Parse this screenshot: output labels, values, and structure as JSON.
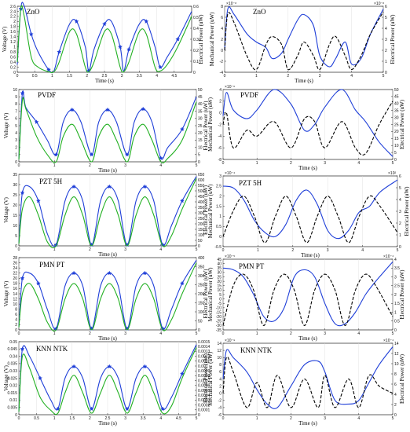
{
  "colors": {
    "blue": "#1f3fd8",
    "green": "#22b022",
    "black": "#000000"
  },
  "chart_data": [
    {
      "id": "zno_v",
      "type": "line",
      "title": "ZnO",
      "xlabel": "Time (s)",
      "ylabel": "Voltage (V)",
      "y2label": "Electrical Power (uW)",
      "xlim": [
        0,
        5
      ],
      "ylim": [
        0,
        2.6
      ],
      "y2lim": [
        0,
        0.6
      ],
      "xticks": [
        "0",
        "0.5",
        "1",
        "1.5",
        "2",
        "2.5",
        "3",
        "3.5",
        "4",
        "4.5"
      ],
      "yticks": [
        "0",
        "0.2",
        "0.4",
        "0.6",
        "0.8",
        "1",
        "1.2",
        "1.4",
        "1.6",
        "1.8",
        "2",
        "2.2",
        "2.4",
        "2.6"
      ],
      "y2ticks": [
        "0",
        "0.1",
        "0.2",
        "0.3",
        "0.4",
        "0.5",
        "0.6"
      ],
      "x": [
        0,
        0.1,
        0.2,
        0.4,
        0.6,
        0.9,
        1.05,
        1.2,
        1.5,
        1.7,
        1.95,
        2.05,
        2.2,
        2.5,
        2.7,
        2.95,
        3.05,
        3.2,
        3.5,
        3.7,
        3.95,
        4.1,
        4.3,
        4.6,
        5.0
      ],
      "series": [
        {
          "style": "blue-marker",
          "values": [
            0.3,
            2.5,
            2.6,
            1.5,
            0.8,
            0.1,
            0.05,
            0.8,
            1.9,
            2.0,
            1.0,
            0.05,
            0.9,
            1.9,
            2.0,
            1.0,
            0.05,
            0.9,
            1.9,
            2.0,
            1.0,
            0.2,
            0.6,
            1.3,
            2.4
          ]
        },
        {
          "style": "green",
          "values": [
            0.4,
            2.5,
            2.2,
            0.6,
            0.2,
            0.02,
            0.02,
            0.4,
            1.6,
            1.5,
            0.2,
            0.02,
            0.4,
            1.6,
            1.5,
            0.2,
            0.02,
            0.4,
            1.6,
            1.5,
            0.2,
            0.05,
            0.3,
            1.0,
            2.2
          ]
        }
      ]
    },
    {
      "id": "zno_m",
      "type": "line",
      "title": "ZnO",
      "xlabel": "Time (s)",
      "ylabel": "Mechanical Power (uW)",
      "y2label": "Electrical Power (uW)",
      "xlim": [
        0,
        5
      ],
      "ylim": [
        -4,
        8
      ],
      "y2lim": [
        0,
        6
      ],
      "yexp": "×10⁻⁸",
      "y2exp": "×10⁻⁸",
      "xticks": [
        "0",
        "1",
        "2",
        "3",
        "4",
        "5"
      ],
      "yticks": [
        "-4",
        "-2",
        "0",
        "2",
        "4",
        "6",
        "8"
      ],
      "y2ticks": [
        "0",
        "1",
        "2",
        "3",
        "4",
        "5",
        "6"
      ],
      "x": [
        0,
        0.1,
        0.3,
        0.7,
        1.0,
        1.3,
        1.5,
        1.8,
        2.0,
        2.3,
        2.5,
        2.8,
        3.0,
        3.3,
        3.5,
        3.8,
        4.0,
        4.3,
        4.6,
        5.0
      ],
      "series": [
        {
          "style": "blue",
          "values": [
            0,
            7.5,
            6.5,
            3,
            1.5,
            0.5,
            -1.5,
            -0.5,
            2,
            5.5,
            6.5,
            4.5,
            -1,
            -3,
            -1.5,
            1.5,
            -2.5,
            -1.5,
            3,
            7.5
          ]
        },
        {
          "style": "black-dash",
          "values": [
            0,
            6.6,
            5,
            -1,
            -3.5,
            1,
            2.5,
            1,
            -3.5,
            -1,
            1.5,
            -1,
            -3.5,
            1,
            2.5,
            -1,
            -3.5,
            -1,
            3,
            7
          ]
        }
      ]
    },
    {
      "id": "pvdf_v",
      "type": "line",
      "title": "PVDF",
      "xlabel": "Time (s)",
      "ylabel": "Voltage (V)",
      "y2label": "Electrical Power (uW)",
      "xlim": [
        0,
        5
      ],
      "ylim": [
        0,
        10
      ],
      "y2lim": [
        0,
        50
      ],
      "xticks": [
        "0",
        "1",
        "2",
        "3",
        "4",
        "5"
      ],
      "yticks": [
        "0",
        "1",
        "2",
        "3",
        "4",
        "5",
        "6",
        "7",
        "8",
        "9",
        "10"
      ],
      "y2ticks": [
        "0",
        "5",
        "10",
        "15",
        "20",
        "25",
        "30",
        "35",
        "40",
        "45",
        "50"
      ],
      "x": [
        0,
        0.1,
        0.2,
        0.5,
        0.8,
        1.05,
        1.25,
        1.5,
        1.75,
        2.05,
        2.25,
        2.5,
        2.75,
        3.05,
        3.25,
        3.5,
        3.75,
        4.0,
        4.2,
        4.6,
        5.0
      ],
      "series": [
        {
          "style": "blue-marker",
          "values": [
            0.3,
            9.5,
            7.5,
            5.5,
            3.0,
            1.0,
            5.5,
            7.2,
            5.5,
            1.0,
            5.5,
            7.2,
            5.5,
            1.0,
            5.5,
            7.3,
            5.5,
            0.5,
            2.0,
            4.5,
            9.0
          ]
        },
        {
          "style": "green",
          "values": [
            0.3,
            8.5,
            7.3,
            3.5,
            1.0,
            0.0,
            3.5,
            5.2,
            3.0,
            0.0,
            3.5,
            5.2,
            3.0,
            0.0,
            3.5,
            5.2,
            3.0,
            0.0,
            0.5,
            3.0,
            8.3
          ]
        }
      ]
    },
    {
      "id": "pvdf_m",
      "type": "line",
      "title": "PVDF",
      "xlabel": "Time (s)",
      "ylabel": "Mechanical Power (uW)",
      "y2label": "Electrical Power (uW)",
      "xlim": [
        0,
        5
      ],
      "ylim": [
        -8,
        4
      ],
      "y2lim": [
        0,
        50
      ],
      "yexp": "×10⁻⁶",
      "xticks": [
        "0",
        "1",
        "2",
        "3",
        "4",
        "5"
      ],
      "yticks": [
        "-8",
        "-6",
        "-4",
        "-2",
        "0",
        "2",
        "4"
      ],
      "y2ticks": [
        "0",
        "5",
        "10",
        "15",
        "20",
        "25",
        "30",
        "35",
        "40",
        "45",
        "50"
      ],
      "x": [
        0,
        0.1,
        0.3,
        0.7,
        1.0,
        1.5,
        2.0,
        2.4,
        2.7,
        3.0,
        3.5,
        3.9,
        4.2,
        4.6,
        5.0
      ],
      "series": [
        {
          "style": "blue",
          "values": [
            -0.5,
            3.5,
            0.5,
            -1,
            0.5,
            4,
            1.5,
            -3,
            -2,
            1,
            4,
            0.5,
            -1.5,
            -5,
            -7.5
          ]
        },
        {
          "style": "black-dash",
          "values": [
            -2,
            0,
            -6,
            -3,
            -4,
            -1.5,
            -6,
            -1,
            -1.5,
            -6,
            -1.5,
            -6,
            -7,
            -2,
            2
          ]
        }
      ]
    },
    {
      "id": "pzt_v",
      "type": "line",
      "title": "PZT 5H",
      "xlabel": "Time (s)",
      "ylabel": "Voltage (V)",
      "y2label": "Electrical Power (uW)",
      "xlim": [
        0,
        5
      ],
      "ylim": [
        0,
        35
      ],
      "y2lim": [
        0,
        650
      ],
      "xticks": [
        "0",
        "1",
        "2",
        "3",
        "4",
        "5"
      ],
      "yticks": [
        "0",
        "5",
        "10",
        "15",
        "20",
        "25",
        "30",
        "35"
      ],
      "y2ticks": [
        "0",
        "50",
        "100",
        "150",
        "200",
        "250",
        "300",
        "350",
        "400",
        "450",
        "500",
        "550",
        "600",
        "650"
      ],
      "x": [
        0,
        0.1,
        0.3,
        0.55,
        0.8,
        1.05,
        1.3,
        1.55,
        1.8,
        2.05,
        2.3,
        2.55,
        2.8,
        3.05,
        3.3,
        3.55,
        3.8,
        4.05,
        4.3,
        4.6,
        5.0
      ],
      "series": [
        {
          "style": "blue-marker",
          "values": [
            1,
            26,
            29,
            22,
            6,
            0.5,
            22,
            29,
            22,
            0.5,
            22,
            29,
            22,
            0.5,
            22,
            29,
            22,
            0.5,
            10,
            22,
            34
          ]
        },
        {
          "style": "green",
          "values": [
            1,
            18,
            24,
            15,
            2,
            0,
            15,
            24,
            15,
            0,
            15,
            24,
            15,
            0,
            15,
            24,
            15,
            0,
            5,
            18,
            33
          ]
        }
      ]
    },
    {
      "id": "pzt_m",
      "type": "line",
      "title": "PZT 5H",
      "xlabel": "Time (s)",
      "ylabel": "Mechanical Power (uW)",
      "y2label": "Electrical Power (uW)",
      "xlim": [
        0,
        5
      ],
      "ylim": [
        -0.5,
        3
      ],
      "y2lim": [
        0,
        6
      ],
      "yexp": "×10⁻⁴",
      "y2exp": "×10²",
      "xticks": [
        "0",
        "1",
        "2",
        "3",
        "4",
        "5"
      ],
      "yticks": [
        "-0.5",
        "0",
        "0.5",
        "1",
        "1.5",
        "2",
        "2.5",
        "3"
      ],
      "y2ticks": [
        "0",
        "1",
        "2",
        "3",
        "4",
        "5",
        "6"
      ],
      "x": [
        0,
        0.3,
        0.6,
        0.9,
        1.2,
        1.5,
        1.8,
        2.1,
        2.4,
        2.7,
        3.0,
        3.3,
        3.6,
        3.9,
        4.2,
        4.5,
        5.0
      ],
      "series": [
        {
          "style": "blue",
          "values": [
            2.5,
            2.4,
            1.8,
            0.8,
            0.2,
            0,
            0.6,
            1.8,
            2.3,
            1.6,
            0.3,
            -0.1,
            0.3,
            1.2,
            1.5,
            2.2,
            2.8
          ]
        },
        {
          "style": "black-dash",
          "values": [
            0,
            1.3,
            2.0,
            1.0,
            -0.3,
            1.0,
            2.0,
            1.0,
            -0.3,
            1.0,
            2.0,
            1.0,
            -0.3,
            1.0,
            2.0,
            1.5,
            0.2
          ]
        }
      ]
    },
    {
      "id": "pmn_v",
      "type": "line",
      "title": "PMN PT",
      "xlabel": "Time (s)",
      "ylabel": "Voltage (V)",
      "y2label": "Electrical Power (uW)",
      "xlim": [
        0,
        5
      ],
      "ylim": [
        0,
        28
      ],
      "y2lim": [
        0,
        400
      ],
      "xticks": [
        "0",
        "1",
        "2",
        "3",
        "4",
        "5"
      ],
      "yticks": [
        "0",
        "2",
        "4",
        "6",
        "8",
        "10",
        "12",
        "14",
        "16",
        "18",
        "20",
        "22",
        "24",
        "26",
        "28"
      ],
      "y2ticks": [
        "0",
        "50",
        "100",
        "150",
        "200",
        "250",
        "300",
        "350",
        "400"
      ],
      "x": [
        0,
        0.1,
        0.3,
        0.55,
        0.8,
        1.05,
        1.3,
        1.55,
        1.8,
        2.05,
        2.3,
        2.55,
        2.8,
        3.05,
        3.3,
        3.55,
        3.8,
        4.05,
        4.3,
        4.6,
        5.0
      ],
      "series": [
        {
          "style": "blue-marker",
          "values": [
            1,
            20,
            22,
            18,
            8,
            0.5,
            17,
            22,
            17,
            0.5,
            17,
            22,
            17,
            0.5,
            17,
            22,
            17,
            0.5,
            8,
            18,
            27
          ]
        },
        {
          "style": "green",
          "values": [
            1,
            14,
            18,
            12,
            3,
            0,
            12,
            18,
            12,
            0,
            12,
            18,
            12,
            0,
            12,
            18,
            12,
            0,
            4,
            14,
            26
          ]
        }
      ]
    },
    {
      "id": "pmn_m",
      "type": "line",
      "title": "PMN PT",
      "xlabel": "Time (s)",
      "ylabel": "Mechanical Power (uW)",
      "y2label": "Electrical Power (uW)",
      "xlim": [
        0,
        5
      ],
      "ylim": [
        -35,
        45
      ],
      "y2lim": [
        0,
        4
      ],
      "yexp": "×10⁻⁵",
      "y2exp": "×10⁻⁴",
      "xticks": [
        "0",
        "1",
        "2",
        "3",
        "4",
        "5"
      ],
      "yticks": [
        "-35",
        "-30",
        "-25",
        "-20",
        "-15",
        "-10",
        "-5",
        "0",
        "5",
        "10",
        "15",
        "20",
        "25",
        "30",
        "35",
        "40",
        "45"
      ],
      "y2ticks": [
        "0",
        "0.5",
        "1",
        "1.5",
        "2",
        "2.5",
        "3",
        "3.5",
        "4"
      ],
      "x": [
        0,
        0.3,
        0.6,
        0.9,
        1.2,
        1.5,
        1.8,
        2.1,
        2.4,
        2.7,
        3.0,
        3.3,
        3.6,
        3.9,
        4.2,
        4.5,
        5.0
      ],
      "series": [
        {
          "style": "blue",
          "values": [
            35,
            33,
            25,
            5,
            -20,
            -25,
            -10,
            25,
            33,
            25,
            -5,
            -28,
            -28,
            -15,
            5,
            20,
            42
          ]
        },
        {
          "style": "black-dash",
          "values": [
            -30,
            15,
            28,
            10,
            -30,
            10,
            28,
            10,
            -30,
            10,
            28,
            10,
            -30,
            10,
            28,
            15,
            -20
          ]
        }
      ]
    },
    {
      "id": "knn_v",
      "type": "line",
      "title": "KNN NTK",
      "xlabel": "Time (s)",
      "ylabel": "Voltage (V)",
      "y2label": "Electrical Power (uW)",
      "xlim": [
        0,
        5
      ],
      "ylim": [
        0,
        0.05
      ],
      "y2lim": [
        0,
        0.0015
      ],
      "xticks": [
        "0",
        "0.5",
        "1",
        "1.5",
        "2",
        "2.5",
        "3",
        "3.5",
        "4",
        "4.5",
        "5"
      ],
      "yticks": [
        "0",
        "0.005",
        "0.01",
        "0.015",
        "0.02",
        "0.025",
        "0.03",
        "0.035",
        "0.04",
        "0.045",
        "0.05"
      ],
      "y2ticks": [
        "0",
        "0.0001",
        "0.0002",
        "0.0003",
        "0.0004",
        "0.0005",
        "0.0006",
        "0.0007",
        "0.0008",
        "0.0009",
        "0.001",
        "0.0011",
        "0.0012",
        "0.0013",
        "0.0014",
        "0.0015"
      ],
      "x": [
        0,
        0.1,
        0.3,
        0.6,
        0.9,
        1.1,
        1.3,
        1.55,
        1.8,
        2.05,
        2.3,
        2.55,
        2.8,
        3.05,
        3.3,
        3.55,
        3.8,
        4.05,
        4.3,
        4.6,
        5.0
      ],
      "series": [
        {
          "style": "blue-marker",
          "values": [
            0.002,
            0.045,
            0.04,
            0.025,
            0.01,
            0.004,
            0.025,
            0.033,
            0.025,
            0.004,
            0.025,
            0.033,
            0.025,
            0.004,
            0.025,
            0.033,
            0.025,
            0.004,
            0.012,
            0.028,
            0.048
          ]
        },
        {
          "style": "green",
          "values": [
            0.002,
            0.04,
            0.032,
            0.012,
            0.003,
            0.001,
            0.015,
            0.027,
            0.015,
            0.001,
            0.015,
            0.027,
            0.015,
            0.001,
            0.015,
            0.027,
            0.015,
            0.001,
            0.006,
            0.025,
            0.046
          ]
        }
      ]
    },
    {
      "id": "knn_m",
      "type": "line",
      "title": "KNN NTK",
      "xlabel": "Time (s)",
      "ylabel": "Mechanical Power (uW)",
      "y2label": "Electrical Power (uW)",
      "xlim": [
        0,
        5
      ],
      "ylim": [
        -6,
        14
      ],
      "y2lim": [
        0,
        14
      ],
      "yexp": "×10⁻⁹",
      "y2exp": "×10⁻⁴",
      "xticks": [
        "0",
        "1",
        "2",
        "3",
        "4",
        "5"
      ],
      "yticks": [
        "-6",
        "-4",
        "-2",
        "0",
        "2",
        "4",
        "6",
        "8",
        "10",
        "12",
        "14"
      ],
      "y2ticks": [
        "0",
        "2",
        "4",
        "6",
        "8",
        "10",
        "12",
        "14"
      ],
      "x": [
        0,
        0.1,
        0.3,
        0.7,
        1.0,
        1.3,
        1.6,
        2.0,
        2.4,
        2.8,
        3.0,
        3.3,
        3.7,
        4.0,
        4.3,
        4.6,
        5.0
      ],
      "series": [
        {
          "style": "blue",
          "values": [
            4,
            12,
            10,
            6,
            1,
            -3,
            -4,
            2,
            8,
            9,
            6,
            -2,
            -3,
            -2,
            3,
            8,
            13
          ]
        },
        {
          "style": "black-dash",
          "values": [
            0,
            10,
            6,
            -4,
            3,
            -4,
            5,
            -4,
            4,
            -4,
            5,
            -4,
            4,
            -4,
            5,
            2,
            0
          ]
        }
      ]
    }
  ]
}
